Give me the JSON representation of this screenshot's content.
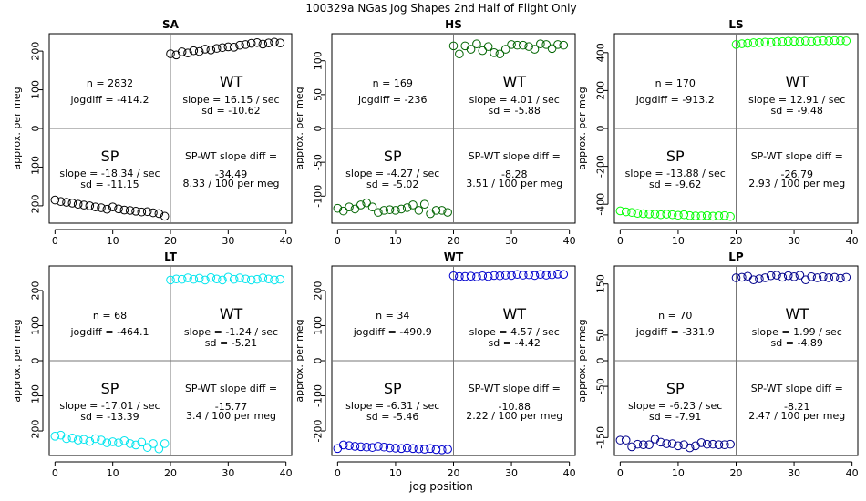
{
  "figure": {
    "title": "100329a   NGas Jog Shapes 2nd Half of Flight Only",
    "xlabel": "jog position"
  },
  "chart_data": [
    {
      "type": "scatter",
      "title": "SA",
      "color": "#000000",
      "ylabel": "approx. per meg",
      "xlim": [
        -1,
        41
      ],
      "ylim": [
        -245,
        245
      ],
      "xticks": [
        0,
        10,
        20,
        30,
        40
      ],
      "yticks": [
        -200,
        -100,
        0,
        100,
        200
      ],
      "x": [
        0,
        1,
        2,
        3,
        4,
        5,
        6,
        7,
        8,
        9,
        10,
        11,
        12,
        13,
        14,
        15,
        16,
        17,
        18,
        19,
        20,
        21,
        22,
        23,
        24,
        25,
        26,
        27,
        28,
        29,
        30,
        31,
        32,
        33,
        34,
        35,
        36,
        37,
        38,
        39
      ],
      "y": [
        -185,
        -189,
        -191,
        -193,
        -196,
        -198,
        -200,
        -203,
        -205,
        -209,
        -203,
        -208,
        -211,
        -212,
        -214,
        -216,
        -215,
        -218,
        -220,
        -227,
        193,
        190,
        198,
        195,
        201,
        199,
        205,
        203,
        207,
        209,
        211,
        210,
        215,
        217,
        220,
        222,
        218,
        221,
        223,
        221
      ],
      "labels": {
        "n": "n = 2832",
        "jogdiff": "jogdiff = -414.2",
        "wt": "WT",
        "wt_slope": "slope = 16.15 / sec",
        "wt_sd": "sd = -10.62",
        "sp": "SP",
        "sp_slope": "slope = -18.34 / sec",
        "sp_sd": "sd = -11.15",
        "diff_label": "SP-WT slope diff =",
        "diff_value": "-34.49",
        "diff_per": "8.33 / 100 per meg"
      }
    },
    {
      "type": "scatter",
      "title": "HS",
      "color": "#006400",
      "ylabel": "approx. per meg",
      "xlim": [
        -1,
        41
      ],
      "ylim": [
        -140,
        140
      ],
      "xticks": [
        0,
        10,
        20,
        30,
        40
      ],
      "yticks": [
        -100,
        -50,
        0,
        50,
        100
      ],
      "x": [
        0,
        1,
        2,
        3,
        4,
        5,
        6,
        7,
        8,
        9,
        10,
        11,
        12,
        13,
        14,
        15,
        16,
        17,
        18,
        19,
        20,
        21,
        22,
        23,
        24,
        25,
        26,
        27,
        28,
        29,
        30,
        31,
        32,
        33,
        34,
        35,
        36,
        37,
        38,
        39
      ],
      "y": [
        -118,
        -122,
        -116,
        -119,
        -113,
        -110,
        -116,
        -124,
        -121,
        -120,
        -121,
        -119,
        -117,
        -113,
        -121,
        -112,
        -126,
        -121,
        -121,
        -124,
        122,
        110,
        122,
        117,
        125,
        115,
        121,
        112,
        110,
        117,
        124,
        123,
        123,
        121,
        117,
        125,
        124,
        118,
        124,
        123
      ],
      "labels": {
        "n": "n = 169",
        "jogdiff": "jogdiff = -236",
        "wt": "WT",
        "wt_slope": "slope = 4.01 / sec",
        "wt_sd": "sd = -5.88",
        "sp": "SP",
        "sp_slope": "slope = -4.27 / sec",
        "sp_sd": "sd = -5.02",
        "diff_label": "SP-WT slope diff =",
        "diff_value": "-8.28",
        "diff_per": "3.51 / 100 per meg"
      }
    },
    {
      "type": "scatter",
      "title": "LS",
      "color": "#00ff00",
      "ylabel": "approx. per meg",
      "xlim": [
        -1,
        41
      ],
      "ylim": [
        -500,
        500
      ],
      "xticks": [
        0,
        10,
        20,
        30,
        40
      ],
      "yticks": [
        -400,
        -200,
        0,
        200,
        400
      ],
      "x": [
        0,
        1,
        2,
        3,
        4,
        5,
        6,
        7,
        8,
        9,
        10,
        11,
        12,
        13,
        14,
        15,
        16,
        17,
        18,
        19,
        20,
        21,
        22,
        23,
        24,
        25,
        26,
        27,
        28,
        29,
        30,
        31,
        32,
        33,
        34,
        35,
        36,
        37,
        38,
        39
      ],
      "y": [
        -435,
        -440,
        -443,
        -448,
        -450,
        -451,
        -452,
        -455,
        -452,
        -455,
        -458,
        -455,
        -460,
        -462,
        -462,
        -460,
        -463,
        -461,
        -460,
        -465,
        443,
        447,
        449,
        452,
        453,
        455,
        454,
        457,
        458,
        460,
        460,
        458,
        461,
        459,
        461,
        463,
        462,
        464,
        463,
        462
      ],
      "labels": {
        "n": "n = 170",
        "jogdiff": "jogdiff = -913.2",
        "wt": "WT",
        "wt_slope": "slope = 12.91 / sec",
        "wt_sd": "sd = -9.48",
        "sp": "SP",
        "sp_slope": "slope = -13.88 / sec",
        "sp_sd": "sd = -9.62",
        "diff_label": "SP-WT slope diff =",
        "diff_value": "-26.79",
        "diff_per": "2.93 / 100 per meg"
      }
    },
    {
      "type": "scatter",
      "title": "LT",
      "color": "#00e5ee",
      "ylabel": "approx. per meg",
      "xlim": [
        -1,
        41
      ],
      "ylim": [
        -270,
        270
      ],
      "xticks": [
        0,
        10,
        20,
        30,
        40
      ],
      "yticks": [
        -200,
        -100,
        0,
        100,
        200
      ],
      "x": [
        0,
        1,
        2,
        3,
        4,
        5,
        6,
        7,
        8,
        9,
        10,
        11,
        12,
        13,
        14,
        15,
        16,
        17,
        18,
        19,
        20,
        21,
        22,
        23,
        24,
        25,
        26,
        27,
        28,
        29,
        30,
        31,
        32,
        33,
        34,
        35,
        36,
        37,
        38,
        39
      ],
      "y": [
        -215,
        -212,
        -222,
        -220,
        -226,
        -224,
        -230,
        -222,
        -226,
        -234,
        -231,
        -234,
        -228,
        -236,
        -240,
        -232,
        -247,
        -236,
        -251,
        -236,
        230,
        233,
        232,
        236,
        232,
        235,
        230,
        237,
        233,
        230,
        238,
        232,
        236,
        233,
        230,
        232,
        236,
        233,
        230,
        232
      ],
      "labels": {
        "n": "n = 68",
        "jogdiff": "jogdiff = -464.1",
        "wt": "WT",
        "wt_slope": "slope = -1.24 / sec",
        "wt_sd": "sd = -5.21",
        "sp": "SP",
        "sp_slope": "slope = -17.01 / sec",
        "sp_sd": "sd = -13.39",
        "diff_label": "SP-WT slope diff =",
        "diff_value": "-15.77",
        "diff_per": "3.4 / 100 per meg"
      }
    },
    {
      "type": "scatter",
      "title": "WT",
      "color": "#0000cd",
      "ylabel": "approx. per meg",
      "xlim": [
        -1,
        41
      ],
      "ylim": [
        -270,
        270
      ],
      "xticks": [
        0,
        10,
        20,
        30,
        40
      ],
      "yticks": [
        -200,
        -100,
        0,
        100,
        200
      ],
      "x": [
        0,
        1,
        2,
        3,
        4,
        5,
        6,
        7,
        8,
        9,
        10,
        11,
        12,
        13,
        14,
        15,
        16,
        17,
        18,
        19,
        20,
        21,
        22,
        23,
        24,
        25,
        26,
        27,
        28,
        29,
        30,
        31,
        32,
        33,
        34,
        35,
        36,
        37,
        38,
        39
      ],
      "y": [
        -250,
        -240,
        -242,
        -244,
        -245,
        -246,
        -247,
        -244,
        -246,
        -248,
        -249,
        -250,
        -248,
        -250,
        -251,
        -252,
        -250,
        -253,
        -254,
        -252,
        242,
        240,
        240,
        241,
        239,
        242,
        240,
        243,
        242,
        244,
        243,
        246,
        244,
        245,
        243,
        246,
        244,
        245,
        247,
        246
      ],
      "labels": {
        "n": "n = 34",
        "jogdiff": "jogdiff = -490.9",
        "wt": "WT",
        "wt_slope": "slope = 4.57 / sec",
        "wt_sd": "sd = -4.42",
        "sp": "SP",
        "sp_slope": "slope = -6.31 / sec",
        "sp_sd": "sd = -5.46",
        "diff_label": "SP-WT slope diff =",
        "diff_value": "-10.88",
        "diff_per": "2.22 / 100 per meg"
      }
    },
    {
      "type": "scatter",
      "title": "LP",
      "color": "#00008b",
      "ylabel": "approx. per meg",
      "xlim": [
        -1,
        41
      ],
      "ylim": [
        -185,
        185
      ],
      "xticks": [
        0,
        10,
        20,
        30,
        40
      ],
      "yticks": [
        -150,
        -50,
        0,
        50,
        150
      ],
      "x": [
        0,
        1,
        2,
        3,
        4,
        5,
        6,
        7,
        8,
        9,
        10,
        11,
        12,
        13,
        14,
        15,
        16,
        17,
        18,
        19,
        20,
        21,
        22,
        23,
        24,
        25,
        26,
        27,
        28,
        29,
        30,
        31,
        32,
        33,
        34,
        35,
        36,
        37,
        38,
        39
      ],
      "y": [
        -155,
        -155,
        -168,
        -163,
        -164,
        -164,
        -153,
        -159,
        -162,
        -162,
        -166,
        -164,
        -170,
        -166,
        -160,
        -163,
        -163,
        -164,
        -164,
        -163,
        162,
        163,
        165,
        158,
        160,
        162,
        166,
        167,
        163,
        166,
        164,
        167,
        158,
        164,
        162,
        164,
        162,
        163,
        161,
        163
      ],
      "labels": {
        "n": "n = 70",
        "jogdiff": "jogdiff = -331.9",
        "wt": "WT",
        "wt_slope": "slope = 1.99 / sec",
        "wt_sd": "sd = -4.89",
        "sp": "SP",
        "sp_slope": "slope = -6.23 / sec",
        "sp_sd": "sd = -7.91",
        "diff_label": "SP-WT slope diff =",
        "diff_value": "-8.21",
        "diff_per": "2.47 / 100 per meg"
      }
    }
  ]
}
